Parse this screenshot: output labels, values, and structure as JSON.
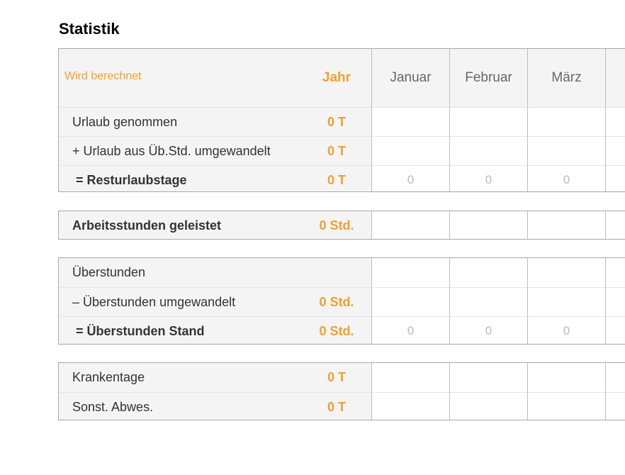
{
  "title": "Statistik",
  "header": {
    "label": "Wird berechnet",
    "year_label": "Jahr",
    "months": [
      "Januar",
      "Februar",
      "März"
    ]
  },
  "groups": [
    {
      "rows": [
        {
          "label": "Urlaub genommen",
          "value": "0 T"
        },
        {
          "label": "+ Urlaub aus Üb.Std. umgewandelt",
          "value": "0 T"
        },
        {
          "label": "= Resturlaubstage",
          "value": "0 T",
          "bold": true,
          "month_values": [
            "0",
            "0",
            "0"
          ]
        }
      ]
    },
    {
      "rows": [
        {
          "label": "Arbeitsstunden geleistet",
          "value": "0 Std.",
          "bold": true
        }
      ]
    },
    {
      "rows": [
        {
          "label": "Überstunden"
        },
        {
          "label": "– Überstunden umgewandelt",
          "value": "0 Std."
        },
        {
          "label": "= Überstunden Stand",
          "value": "0 Std.",
          "bold": true,
          "month_values": [
            "0",
            "0",
            "0"
          ]
        }
      ]
    },
    {
      "rows": [
        {
          "label": "Krankentage",
          "value": "0 T"
        },
        {
          "label": "Sonst. Abwes.",
          "value": "0 T"
        }
      ]
    }
  ]
}
